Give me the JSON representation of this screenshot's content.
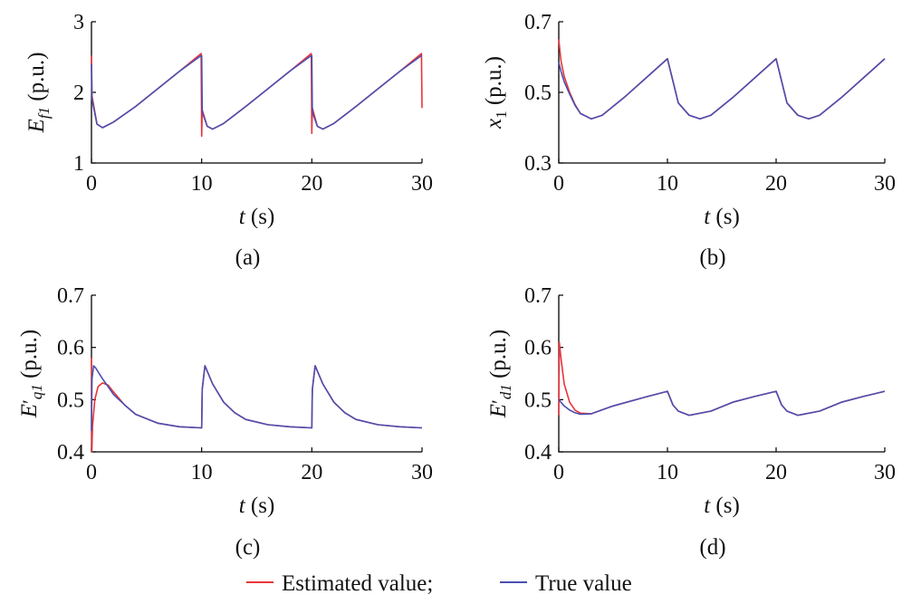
{
  "colors": {
    "estimated": "#e8343a",
    "true": "#4a4fb0"
  },
  "legend": {
    "estimated_label": "Estimated value;",
    "true_label": "True value"
  },
  "chart_data": [
    {
      "id": "a",
      "type": "line",
      "caption": "(a)",
      "ylabel_main": "E",
      "ylabel_sub": "f1",
      "ylabel_units": " (p.u.)",
      "xlabel_var": "t",
      "xlabel_units": " (s)",
      "xlim": [
        0,
        30
      ],
      "ylim": [
        1,
        3
      ],
      "xticks": [
        0,
        10,
        20,
        30
      ],
      "yticks": [
        1,
        2,
        3
      ],
      "ytick_labels": [
        "1",
        "2",
        "3"
      ],
      "series": [
        {
          "key": "estimated",
          "name": "Estimated value",
          "x": [
            0,
            0.05,
            0.5,
            1,
            2,
            4,
            6,
            8,
            9.95,
            10,
            10.05,
            10.5,
            11,
            12,
            14,
            16,
            18,
            19.95,
            20,
            20.05,
            20.5,
            21,
            22,
            24,
            26,
            28,
            29.95,
            30
          ],
          "y": [
            2.52,
            1.95,
            1.55,
            1.5,
            1.58,
            1.8,
            2.05,
            2.3,
            2.55,
            1.38,
            1.75,
            1.52,
            1.48,
            1.56,
            1.8,
            2.05,
            2.3,
            2.55,
            1.42,
            1.78,
            1.52,
            1.48,
            1.56,
            1.8,
            2.05,
            2.3,
            2.55,
            1.78
          ]
        },
        {
          "key": "true",
          "name": "True value",
          "x": [
            0,
            0.05,
            0.5,
            1,
            2,
            4,
            6,
            8,
            9.95,
            10,
            10.05,
            10.5,
            11,
            12,
            14,
            16,
            18,
            19.95,
            20,
            20.05,
            20.5,
            21,
            22,
            24,
            26,
            28,
            29.95,
            30
          ],
          "y": [
            2.4,
            1.9,
            1.55,
            1.5,
            1.58,
            1.8,
            2.05,
            2.3,
            2.52,
            2.52,
            1.72,
            1.52,
            1.48,
            1.56,
            1.8,
            2.05,
            2.3,
            2.52,
            2.52,
            1.72,
            1.52,
            1.48,
            1.56,
            1.8,
            2.05,
            2.3,
            2.52,
            2.52
          ]
        }
      ]
    },
    {
      "id": "b",
      "type": "line",
      "caption": "(b)",
      "ylabel_main": "x",
      "ylabel_sub": "1",
      "ylabel_units": " (p.u.)",
      "xlabel_var": "t",
      "xlabel_units": " (s)",
      "xlim": [
        0,
        30
      ],
      "ylim": [
        0.3,
        0.7
      ],
      "xticks": [
        0,
        10,
        20,
        30
      ],
      "yticks": [
        0.3,
        0.5,
        0.7
      ],
      "ytick_labels": [
        "0.3",
        "0.5",
        "0.7"
      ],
      "series": [
        {
          "key": "estimated",
          "name": "Estimated value",
          "x": [
            0,
            0.2,
            0.5,
            1,
            1.5,
            2,
            3,
            4,
            6,
            8,
            10,
            11,
            12,
            13,
            14,
            16,
            18,
            20,
            21,
            22,
            23,
            24,
            26,
            28,
            30
          ],
          "y": [
            0.65,
            0.59,
            0.545,
            0.5,
            0.465,
            0.44,
            0.425,
            0.435,
            0.485,
            0.54,
            0.595,
            0.47,
            0.435,
            0.425,
            0.435,
            0.485,
            0.54,
            0.595,
            0.47,
            0.435,
            0.425,
            0.435,
            0.485,
            0.54,
            0.595
          ]
        },
        {
          "key": "true",
          "name": "True value",
          "x": [
            0,
            0.2,
            0.5,
            1,
            1.5,
            2,
            3,
            4,
            6,
            8,
            10,
            11,
            12,
            13,
            14,
            16,
            18,
            20,
            21,
            22,
            23,
            24,
            26,
            28,
            30
          ],
          "y": [
            0.585,
            0.56,
            0.53,
            0.495,
            0.463,
            0.44,
            0.425,
            0.435,
            0.485,
            0.54,
            0.595,
            0.47,
            0.435,
            0.425,
            0.435,
            0.485,
            0.54,
            0.595,
            0.47,
            0.435,
            0.425,
            0.435,
            0.485,
            0.54,
            0.595
          ]
        }
      ]
    },
    {
      "id": "c",
      "type": "line",
      "caption": "(c)",
      "ylabel_main": "E",
      "ylabel_prime": "′",
      "ylabel_sub": "q1",
      "ylabel_units": " (p.u.)",
      "xlabel_var": "t",
      "xlabel_units": " (s)",
      "xlim": [
        0,
        30
      ],
      "ylim": [
        0.4,
        0.7
      ],
      "xticks": [
        0,
        10,
        20,
        30
      ],
      "yticks": [
        0.4,
        0.5,
        0.6,
        0.7
      ],
      "ytick_labels": [
        "0.4",
        "0.5",
        "0.6",
        "0.7"
      ],
      "series": [
        {
          "key": "estimated",
          "name": "Estimated value",
          "x": [
            0,
            0.03,
            0.1,
            0.3,
            0.6,
            1,
            1.5,
            2,
            3,
            4,
            6,
            8,
            10,
            10.05,
            10.3,
            11,
            12,
            13,
            14,
            16,
            18,
            20,
            20.05,
            20.3,
            21,
            22,
            23,
            24,
            26,
            28,
            30
          ],
          "y": [
            0.58,
            0.4,
            0.45,
            0.5,
            0.525,
            0.532,
            0.528,
            0.515,
            0.49,
            0.472,
            0.455,
            0.448,
            0.446,
            0.52,
            0.565,
            0.53,
            0.495,
            0.475,
            0.462,
            0.452,
            0.448,
            0.446,
            0.52,
            0.565,
            0.53,
            0.495,
            0.475,
            0.462,
            0.452,
            0.448,
            0.446
          ]
        },
        {
          "key": "true",
          "name": "True value",
          "x": [
            0,
            0.05,
            0.2,
            0.4,
            0.7,
            1,
            1.5,
            2,
            3,
            4,
            6,
            8,
            10,
            10.05,
            10.3,
            11,
            12,
            13,
            14,
            16,
            18,
            20,
            20.05,
            20.3,
            21,
            22,
            23,
            24,
            26,
            28,
            30
          ],
          "y": [
            0.44,
            0.54,
            0.565,
            0.56,
            0.55,
            0.54,
            0.525,
            0.51,
            0.49,
            0.472,
            0.455,
            0.448,
            0.446,
            0.52,
            0.565,
            0.53,
            0.495,
            0.475,
            0.462,
            0.452,
            0.448,
            0.446,
            0.52,
            0.565,
            0.53,
            0.495,
            0.475,
            0.462,
            0.452,
            0.448,
            0.446
          ]
        }
      ]
    },
    {
      "id": "d",
      "type": "line",
      "caption": "(d)",
      "ylabel_main": "E",
      "ylabel_prime": "′",
      "ylabel_sub": "d1",
      "ylabel_units": " (p.u.)",
      "xlabel_var": "t",
      "xlabel_units": " (s)",
      "xlim": [
        0,
        30
      ],
      "ylim": [
        0.4,
        0.7
      ],
      "xticks": [
        0,
        10,
        20,
        30
      ],
      "yticks": [
        0.4,
        0.5,
        0.6,
        0.7
      ],
      "ytick_labels": [
        "0.4",
        "0.5",
        "0.6",
        "0.7"
      ],
      "series": [
        {
          "key": "estimated",
          "name": "Estimated value",
          "x": [
            0,
            0.05,
            0.2,
            0.5,
            1,
            1.5,
            2,
            3,
            5,
            8,
            10,
            10.5,
            11,
            12,
            14,
            16,
            18,
            20,
            20.5,
            21,
            22,
            24,
            26,
            28,
            30
          ],
          "y": [
            0.47,
            0.61,
            0.58,
            0.53,
            0.495,
            0.48,
            0.474,
            0.473,
            0.488,
            0.505,
            0.516,
            0.49,
            0.478,
            0.47,
            0.478,
            0.495,
            0.506,
            0.516,
            0.49,
            0.478,
            0.47,
            0.478,
            0.495,
            0.506,
            0.516
          ]
        },
        {
          "key": "true",
          "name": "True value",
          "x": [
            0,
            0.2,
            0.5,
            1,
            1.5,
            2,
            3,
            5,
            8,
            10,
            10.5,
            11,
            12,
            14,
            16,
            18,
            20,
            20.5,
            21,
            22,
            24,
            26,
            28,
            30
          ],
          "y": [
            0.5,
            0.495,
            0.488,
            0.48,
            0.475,
            0.472,
            0.473,
            0.488,
            0.505,
            0.516,
            0.49,
            0.478,
            0.47,
            0.478,
            0.495,
            0.506,
            0.516,
            0.49,
            0.478,
            0.47,
            0.478,
            0.495,
            0.506,
            0.516
          ]
        }
      ]
    }
  ]
}
